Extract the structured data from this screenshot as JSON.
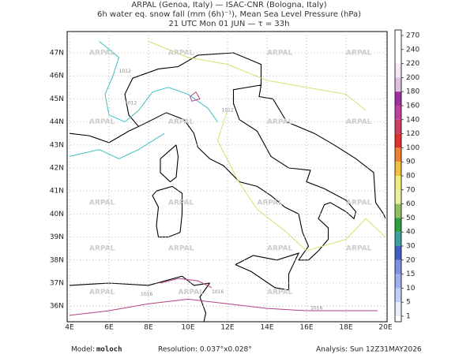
{
  "header": {
    "lines": [
      "ARPAL (Genoa, Italy)  —  ISAC-CNR (Bologna, Italy)",
      "6h water eq. snow fall (mm (6h)⁻¹), Mean Sea Level Pressure (hPa)",
      "21 UTC Mon 01 JUN  —  τ = 33h"
    ]
  },
  "map": {
    "lat_labels": [
      "47N",
      "46N",
      "45N",
      "44N",
      "43N",
      "42N",
      "41N",
      "40N",
      "39N",
      "38N",
      "37N",
      "36N"
    ],
    "lon_labels": [
      "4E",
      "6E",
      "8E",
      "10E",
      "12E",
      "14E",
      "16E",
      "18E",
      "20E"
    ],
    "watermark": "ARPAL",
    "contour_labels": [
      "1012",
      "1016"
    ]
  },
  "colorbar": {
    "levels": [
      270,
      240,
      220,
      200,
      180,
      160,
      140,
      120,
      100,
      90,
      80,
      70,
      60,
      50,
      40,
      30,
      20,
      15,
      10,
      5,
      1
    ],
    "colors": [
      "#ffffff",
      "#ffffff",
      "#f3e8f3",
      "#e0c0e0",
      "#a030a0",
      "#c040a0",
      "#d04060",
      "#e03030",
      "#f08030",
      "#f0c040",
      "#f0f080",
      "#e8f0a0",
      "#90c060",
      "#30a040",
      "#40a0a0",
      "#4060c0",
      "#8090e0",
      "#a0b0f0",
      "#c0d0f8",
      "#e8eefc"
    ]
  },
  "footer": {
    "model_label": "Model:",
    "model": "moloch",
    "resolution": "Resolution: 0.037°x0.028°",
    "analysis": "Analysis: Sun 12Z31MAY2026"
  }
}
